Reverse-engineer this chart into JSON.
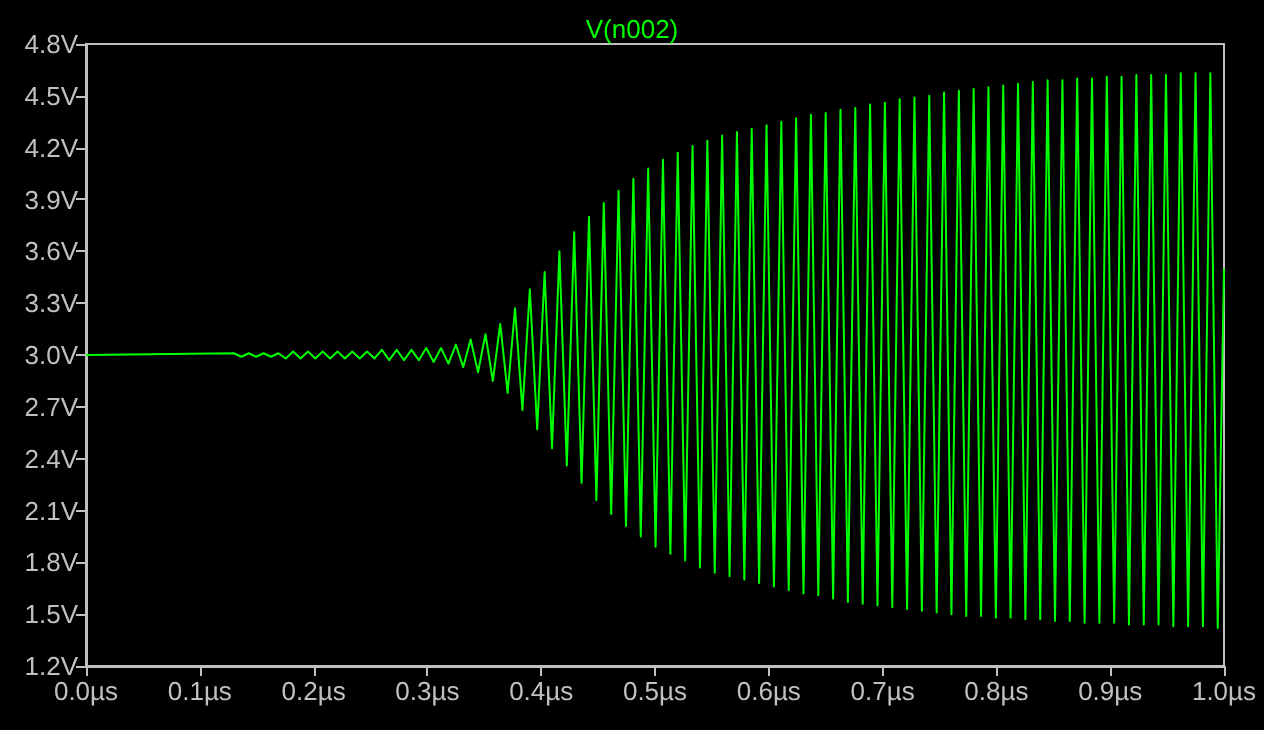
{
  "chart_data": {
    "type": "line",
    "title": "V(n002)",
    "x": [
      0,
      0.13,
      0.1365,
      0.143,
      0.1495,
      0.156,
      0.1625,
      0.169,
      0.1755,
      0.182,
      0.1885,
      0.195,
      0.2015,
      0.208,
      0.2145,
      0.221,
      0.2275,
      0.234,
      0.2405,
      0.247,
      0.2535,
      0.26,
      0.2665,
      0.273,
      0.2795,
      0.286,
      0.2925,
      0.299,
      0.3055,
      0.312,
      0.3185,
      0.325,
      0.3315,
      0.338,
      0.3445,
      0.351,
      0.3575,
      0.364,
      0.3705,
      0.377,
      0.3835,
      0.39,
      0.3965,
      0.403,
      0.4095,
      0.416,
      0.4225,
      0.429,
      0.4355,
      0.442,
      0.4485,
      0.455,
      0.4615,
      0.468,
      0.4745,
      0.481,
      0.4875,
      0.494,
      0.5005,
      0.507,
      0.5135,
      0.52,
      0.5265,
      0.533,
      0.5395,
      0.546,
      0.5525,
      0.559,
      0.5655,
      0.572,
      0.5785,
      0.585,
      0.5915,
      0.598,
      0.6045,
      0.611,
      0.6175,
      0.624,
      0.6305,
      0.637,
      0.6435,
      0.65,
      0.6565,
      0.663,
      0.6695,
      0.676,
      0.6825,
      0.689,
      0.6955,
      0.702,
      0.7085,
      0.715,
      0.7215,
      0.728,
      0.7345,
      0.741,
      0.7475,
      0.754,
      0.7605,
      0.767,
      0.7735,
      0.78,
      0.7865,
      0.793,
      0.7995,
      0.806,
      0.8125,
      0.819,
      0.8255,
      0.832,
      0.8385,
      0.845,
      0.8515,
      0.858,
      0.8645,
      0.871,
      0.8775,
      0.884,
      0.8905,
      0.897,
      0.9035,
      0.91,
      0.9165,
      0.923,
      0.9295,
      0.936,
      0.9425,
      0.949,
      0.9555,
      0.962,
      0.9685,
      0.975,
      0.9815,
      0.988,
      0.9945,
      1.0
    ],
    "series": [
      {
        "color": "#00ff00",
        "values": [
          3.0,
          3.01,
          2.99,
          3.01,
          2.99,
          3.01,
          2.99,
          3.01,
          2.98,
          3.02,
          2.98,
          3.02,
          2.98,
          3.02,
          2.98,
          3.02,
          2.98,
          3.02,
          2.98,
          3.02,
          2.98,
          3.03,
          2.97,
          3.03,
          2.97,
          3.03,
          2.97,
          3.04,
          2.96,
          3.04,
          2.95,
          3.06,
          2.93,
          3.09,
          2.9,
          3.12,
          2.85,
          3.18,
          2.78,
          3.27,
          2.68,
          3.38,
          2.57,
          3.48,
          2.46,
          3.6,
          2.36,
          3.71,
          2.26,
          3.8,
          2.16,
          3.88,
          2.08,
          3.95,
          2.01,
          4.02,
          1.95,
          4.08,
          1.89,
          4.13,
          1.85,
          4.17,
          1.81,
          4.21,
          1.77,
          4.24,
          1.74,
          4.27,
          1.72,
          4.29,
          1.7,
          4.31,
          1.68,
          4.33,
          1.66,
          4.35,
          1.64,
          4.37,
          1.62,
          4.39,
          1.61,
          4.4,
          1.59,
          4.42,
          1.57,
          4.43,
          1.56,
          4.45,
          1.55,
          4.46,
          1.54,
          4.48,
          1.53,
          4.49,
          1.52,
          4.5,
          1.51,
          4.52,
          1.5,
          4.53,
          1.49,
          4.54,
          1.49,
          4.55,
          1.48,
          4.56,
          1.48,
          4.57,
          1.47,
          4.58,
          1.47,
          4.59,
          1.46,
          4.59,
          1.46,
          4.6,
          1.45,
          4.6,
          1.45,
          4.61,
          1.45,
          4.61,
          1.44,
          4.62,
          1.44,
          4.62,
          1.44,
          4.62,
          1.43,
          4.63,
          1.43,
          4.63,
          1.43,
          4.63,
          1.42,
          3.5
        ]
      }
    ],
    "xlim": [
      0,
      1.0
    ],
    "xticks": [
      {
        "value": 0,
        "label": "0.0µs"
      },
      {
        "value": 0.1,
        "label": "0.1µs"
      },
      {
        "value": 0.2,
        "label": "0.2µs"
      },
      {
        "value": 0.3,
        "label": "0.3µs"
      },
      {
        "value": 0.4,
        "label": "0.4µs"
      },
      {
        "value": 0.5,
        "label": "0.5µs"
      },
      {
        "value": 0.6,
        "label": "0.6µs"
      },
      {
        "value": 0.7,
        "label": "0.7µs"
      },
      {
        "value": 0.8,
        "label": "0.8µs"
      },
      {
        "value": 0.9,
        "label": "0.9µs"
      },
      {
        "value": 1.0,
        "label": "1.0µs"
      }
    ],
    "ylim": [
      1.2,
      4.8
    ],
    "yticks": [
      {
        "value": 1.2,
        "label": "1.2V"
      },
      {
        "value": 1.5,
        "label": "1.5V"
      },
      {
        "value": 1.8,
        "label": "1.8V"
      },
      {
        "value": 2.1,
        "label": "2.1V"
      },
      {
        "value": 2.4,
        "label": "2.4V"
      },
      {
        "value": 2.7,
        "label": "2.7V"
      },
      {
        "value": 3.0,
        "label": "3.0V"
      },
      {
        "value": 3.3,
        "label": "3.3V"
      },
      {
        "value": 3.6,
        "label": "3.6V"
      },
      {
        "value": 3.9,
        "label": "3.9V"
      },
      {
        "value": 4.2,
        "label": "4.2V"
      },
      {
        "value": 4.5,
        "label": "4.5V"
      },
      {
        "value": 4.8,
        "label": "4.8V"
      }
    ],
    "grid": false,
    "marker": "none",
    "line_style": "solid"
  }
}
